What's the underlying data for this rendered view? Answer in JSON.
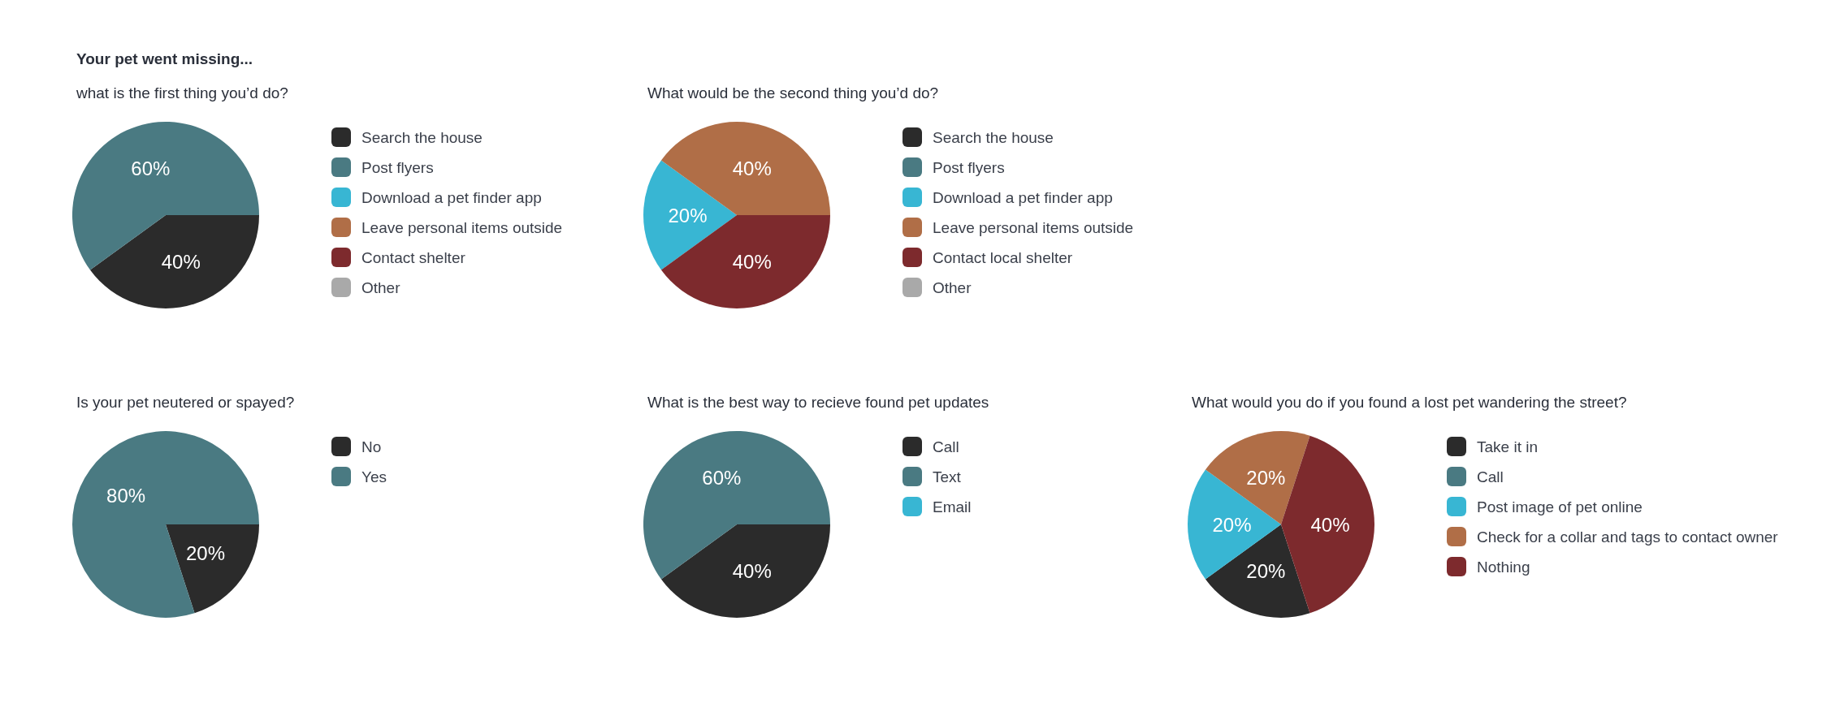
{
  "chart_data": [
    {
      "type": "pie",
      "title": "Your pet went missing...",
      "subtitle": "what is the first thing you’d do?",
      "categories": [
        "Search the house",
        "Post flyers",
        "Download a pet finder app",
        "Leave personal items outside",
        "Contact shelter",
        "Other"
      ],
      "values": [
        40,
        60,
        0,
        0,
        0,
        0
      ],
      "value_labels": [
        "40%",
        "60%",
        null,
        null,
        null,
        null
      ],
      "colors": [
        "#2b2b2b",
        "#4a7a82",
        "#38b6d3",
        "#b06e47",
        "#7d2a2d",
        "#a9a9a9"
      ],
      "legend": "right"
    },
    {
      "type": "pie",
      "title": "What would be the second thing you’d do?",
      "categories": [
        "Search the house",
        "Post flyers",
        "Download a pet finder app",
        "Leave personal items outside",
        "Contact local shelter",
        "Other"
      ],
      "values": [
        0,
        0,
        20,
        40,
        40,
        0
      ],
      "value_labels": [
        null,
        null,
        "20%",
        "40%",
        "40%",
        null
      ],
      "colors": [
        "#2b2b2b",
        "#4a7a82",
        "#38b6d3",
        "#b06e47",
        "#7d2a2d",
        "#a9a9a9"
      ],
      "legend": "right"
    },
    {
      "type": "pie",
      "title": "Is your pet neutered or spayed?",
      "categories": [
        "No",
        "Yes"
      ],
      "values": [
        20,
        80
      ],
      "value_labels": [
        "20%",
        "80%"
      ],
      "colors": [
        "#2b2b2b",
        "#4a7a82"
      ],
      "legend": "right"
    },
    {
      "type": "pie",
      "title": "What is the best way to recieve found pet updates",
      "categories": [
        "Call",
        "Text",
        "Email"
      ],
      "values": [
        40,
        60,
        0
      ],
      "value_labels": [
        "40%",
        "60%",
        null
      ],
      "colors": [
        "#2b2b2b",
        "#4a7a82",
        "#38b6d3"
      ],
      "legend": "right"
    },
    {
      "type": "pie",
      "title": "What would you do if you found a lost pet wandering the street?",
      "categories": [
        "Take it in",
        "Call",
        "Post image of pet online",
        "Check for a collar and tags to contact owner",
        "Nothing"
      ],
      "values": [
        20,
        0,
        20,
        20,
        40
      ],
      "value_labels": [
        "20%",
        null,
        "20%",
        "20%",
        "40%"
      ],
      "colors": [
        "#2b2b2b",
        "#4a7a82",
        "#38b6d3",
        "#b06e47",
        "#7d2a2d"
      ],
      "legend": "right"
    }
  ]
}
